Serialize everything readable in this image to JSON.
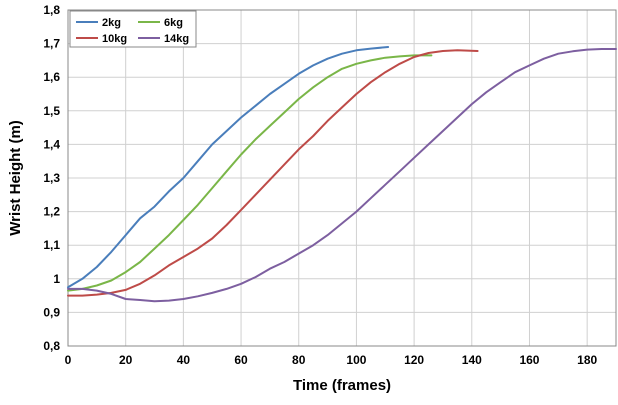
{
  "chart_data": {
    "type": "line",
    "xlabel": "Time (frames)",
    "ylabel": "Wrist Height (m)",
    "xlim": [
      0,
      190
    ],
    "ylim": [
      0.8,
      1.8
    ],
    "xticks": [
      0,
      20,
      40,
      60,
      80,
      100,
      120,
      140,
      160,
      180
    ],
    "yticks": [
      0.8,
      0.9,
      1.0,
      1.1,
      1.2,
      1.3,
      1.4,
      1.5,
      1.6,
      1.7,
      1.8
    ],
    "xtick_labels": [
      "0",
      "20",
      "40",
      "60",
      "80",
      "100",
      "120",
      "140",
      "160",
      "180"
    ],
    "ytick_labels": [
      "0,8",
      "0,9",
      "1",
      "1,1",
      "1,2",
      "1,3",
      "1,4",
      "1,5",
      "1,6",
      "1,7",
      "1,8"
    ],
    "grid": true,
    "legend_position": "top-left",
    "series": [
      {
        "name": "2kg",
        "color": "#4a7ebb",
        "x": [
          0,
          5,
          10,
          15,
          20,
          25,
          30,
          35,
          40,
          45,
          50,
          55,
          60,
          65,
          70,
          75,
          80,
          85,
          90,
          95,
          100,
          105,
          111
        ],
        "y": [
          0.975,
          1.0,
          1.035,
          1.08,
          1.13,
          1.18,
          1.215,
          1.26,
          1.3,
          1.35,
          1.4,
          1.44,
          1.48,
          1.515,
          1.55,
          1.58,
          1.61,
          1.635,
          1.655,
          1.67,
          1.68,
          1.685,
          1.69
        ]
      },
      {
        "name": "6kg",
        "color": "#7ab648",
        "x": [
          0,
          5,
          10,
          15,
          20,
          25,
          30,
          35,
          40,
          45,
          50,
          55,
          60,
          65,
          70,
          75,
          80,
          85,
          90,
          95,
          100,
          105,
          110,
          115,
          120,
          126
        ],
        "y": [
          0.965,
          0.97,
          0.98,
          0.995,
          1.02,
          1.05,
          1.09,
          1.13,
          1.175,
          1.22,
          1.27,
          1.32,
          1.37,
          1.415,
          1.455,
          1.495,
          1.535,
          1.57,
          1.6,
          1.625,
          1.64,
          1.65,
          1.658,
          1.662,
          1.665,
          1.665
        ]
      },
      {
        "name": "10kg",
        "color": "#be4b48",
        "x": [
          0,
          5,
          10,
          15,
          20,
          25,
          30,
          35,
          40,
          45,
          50,
          55,
          60,
          65,
          70,
          75,
          80,
          85,
          90,
          95,
          100,
          105,
          110,
          115,
          120,
          125,
          130,
          135,
          142
        ],
        "y": [
          0.95,
          0.95,
          0.953,
          0.958,
          0.967,
          0.985,
          1.01,
          1.04,
          1.065,
          1.09,
          1.12,
          1.16,
          1.205,
          1.25,
          1.295,
          1.34,
          1.385,
          1.425,
          1.47,
          1.51,
          1.55,
          1.585,
          1.615,
          1.64,
          1.66,
          1.672,
          1.678,
          1.68,
          1.678
        ]
      },
      {
        "name": "14kg",
        "color": "#7d5fa0",
        "x": [
          0,
          5,
          10,
          15,
          20,
          25,
          30,
          35,
          40,
          45,
          50,
          55,
          60,
          65,
          68,
          70,
          75,
          80,
          85,
          90,
          95,
          100,
          105,
          110,
          115,
          120,
          125,
          130,
          135,
          140,
          145,
          150,
          155,
          160,
          165,
          170,
          175,
          180,
          185,
          190
        ],
        "y": [
          0.97,
          0.97,
          0.965,
          0.955,
          0.94,
          0.937,
          0.933,
          0.935,
          0.94,
          0.948,
          0.958,
          0.97,
          0.985,
          1.005,
          1.02,
          1.03,
          1.05,
          1.075,
          1.1,
          1.13,
          1.165,
          1.2,
          1.24,
          1.28,
          1.32,
          1.36,
          1.4,
          1.44,
          1.48,
          1.52,
          1.555,
          1.585,
          1.615,
          1.635,
          1.655,
          1.67,
          1.677,
          1.682,
          1.684,
          1.684
        ]
      }
    ]
  }
}
